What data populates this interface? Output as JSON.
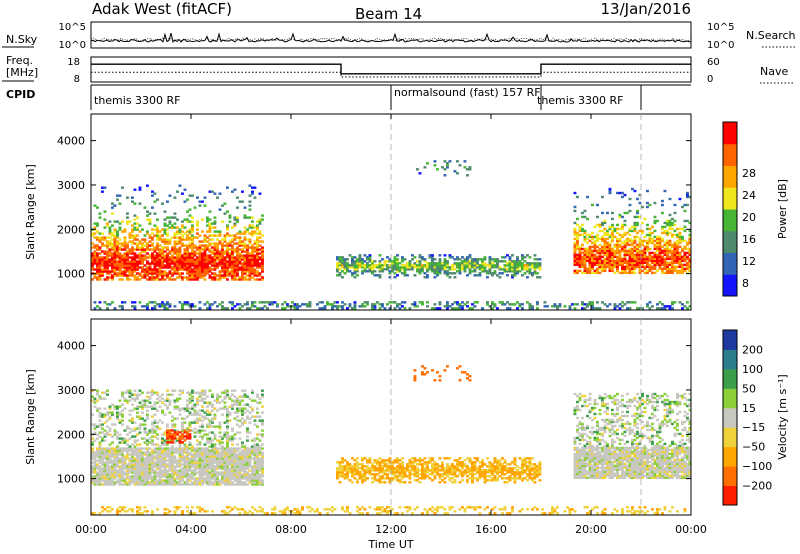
{
  "header": {
    "radar": "Adak West (fitACF)",
    "beam": "Beam 14",
    "date": "13/Jan/2016"
  },
  "panels": {
    "nsky": {
      "label": "N.Sky",
      "ticks": [
        "10^5",
        "10^0"
      ]
    },
    "nsearch": {
      "label": "N.Search",
      "ticks": [
        "10^5",
        "10^0"
      ]
    },
    "freq": {
      "label_lines": [
        "Freq.",
        "[MHz]"
      ],
      "ticks": [
        "18",
        "8"
      ]
    },
    "nave": {
      "label": "Nave",
      "ticks": [
        "60",
        "0"
      ]
    },
    "cpid": {
      "label": "CPID",
      "segments": [
        {
          "name": "themis 3300 RF",
          "start": 0,
          "end": 12
        },
        {
          "name": "normalsound (fast) 157 RF",
          "start": 12,
          "end": 18
        },
        {
          "name": "themis 3300 RF",
          "start": 18,
          "end": 22
        }
      ]
    }
  },
  "axes": {
    "ylabel": "Slant Range [km]",
    "xlabel": "Time UT",
    "xticks": [
      "00:00",
      "04:00",
      "08:00",
      "12:00",
      "16:00",
      "20:00",
      "00:00"
    ],
    "xtick_hours": [
      0,
      4,
      8,
      12,
      16,
      20,
      24
    ],
    "yticks": [
      "1000",
      "2000",
      "3000",
      "4000"
    ],
    "ytick_values": [
      1000,
      2000,
      3000,
      4000
    ],
    "xlim": [
      0,
      24
    ],
    "ylim": [
      180,
      4600
    ],
    "dashed_hours": [
      12,
      22
    ]
  },
  "power_colorbar": {
    "label": "Power [dB]",
    "ticks": [
      "4",
      "8",
      "12",
      "16",
      "20",
      "24",
      "28"
    ],
    "colors": [
      "#1414ff",
      "#3266b4",
      "#4f8a6e",
      "#46b436",
      "#f0e61e",
      "#ffa500",
      "#ff6400",
      "#ff0000"
    ]
  },
  "velocity_colorbar": {
    "label": "Velocity [m s⁻¹]",
    "ticks": [
      "200",
      "100",
      "50",
      "15",
      "−15",
      "−50",
      "−100",
      "−200"
    ],
    "colors": [
      "#1e3ca0",
      "#2c7e8c",
      "#3a9e4a",
      "#8ccf3a",
      "#c8c8c0",
      "#f0d23c",
      "#ffa500",
      "#ff6e00",
      "#ff1e00"
    ]
  },
  "chart_data": [
    {
      "type": "line",
      "title": "Adak West (fitACF)",
      "x_unit": "hours UT",
      "series": [
        {
          "name": "Freq.",
          "x": [
            0,
            10,
            10,
            18,
            18,
            24
          ],
          "y": [
            15,
            15,
            11,
            11,
            15,
            15
          ]
        },
        {
          "name": "Nave",
          "x": [
            0,
            10,
            10,
            18,
            18,
            24
          ],
          "y": [
            22,
            22,
            10,
            10,
            22,
            22
          ]
        },
        {
          "name": "N.Sky",
          "x": [
            0,
            24
          ],
          "y": [
            5,
            5
          ]
        }
      ]
    },
    {
      "type": "heatmap",
      "title": "Power [dB]",
      "xlabel": "Time UT",
      "ylabel": "Slant Range [km]",
      "xlim": [
        0,
        24
      ],
      "ylim": [
        180,
        4600
      ],
      "clim": [
        0,
        32
      ],
      "regions": [
        {
          "t0": 0.0,
          "t1": 6.8,
          "r0": 850,
          "r1": 3000,
          "core_range": 1200,
          "peak_power": 30
        },
        {
          "t0": 9.8,
          "t1": 18.0,
          "r0": 900,
          "r1": 1400,
          "core_range": 1150,
          "peak_power": 16
        },
        {
          "t0": 12.9,
          "t1": 15.1,
          "r0": 3200,
          "r1": 3550,
          "core_range": 3400,
          "peak_power": 12
        },
        {
          "t0": 19.3,
          "t1": 24.0,
          "r0": 1000,
          "r1": 2900,
          "core_range": 1300,
          "peak_power": 28
        },
        {
          "t0": 0.0,
          "t1": 24.0,
          "r0": 200,
          "r1": 350,
          "core_range": 280,
          "peak_power": 12
        }
      ]
    },
    {
      "type": "heatmap",
      "title": "Velocity [m s⁻¹]",
      "xlabel": "Time UT",
      "ylabel": "Slant Range [km]",
      "xlim": [
        0,
        24
      ],
      "ylim": [
        180,
        4600
      ],
      "clim": [
        -200,
        200
      ],
      "regions": [
        {
          "t0": 0.0,
          "t1": 6.8,
          "r0": 850,
          "r1": 3000,
          "dominant_velocity": 0
        },
        {
          "t0": 3.0,
          "t1": 4.0,
          "r0": 1800,
          "r1": 2100,
          "dominant_velocity": -200
        },
        {
          "t0": 9.8,
          "t1": 18.0,
          "r0": 900,
          "r1": 1450,
          "dominant_velocity": -60
        },
        {
          "t0": 12.9,
          "t1": 15.1,
          "r0": 3200,
          "r1": 3550,
          "dominant_velocity": -150
        },
        {
          "t0": 19.3,
          "t1": 24.0,
          "r0": 1000,
          "r1": 2900,
          "dominant_velocity": 0
        },
        {
          "t0": 0.0,
          "t1": 24.0,
          "r0": 200,
          "r1": 350,
          "dominant_velocity": -40
        }
      ]
    }
  ]
}
